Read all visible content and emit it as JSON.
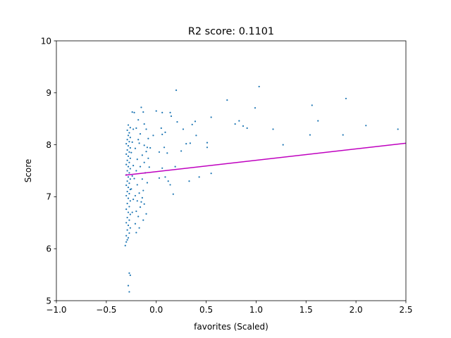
{
  "chart_data": {
    "type": "scatter",
    "title": "R2 score: 0.1101",
    "xlabel": "favorites (Scaled)",
    "ylabel": "Score",
    "xlim": [
      -1.0,
      2.5
    ],
    "ylim": [
      5,
      10
    ],
    "x_ticks": [
      -1.0,
      -0.5,
      0.0,
      0.5,
      1.0,
      1.5,
      2.0,
      2.5
    ],
    "x_tick_labels": [
      "−1.0",
      "−0.5",
      "0.0",
      "0.5",
      "1.0",
      "1.5",
      "2.0",
      "2.5"
    ],
    "y_ticks": [
      5,
      6,
      7,
      8,
      9,
      10
    ],
    "y_tick_labels": [
      "5",
      "6",
      "7",
      "8",
      "9",
      "10"
    ],
    "grid": false,
    "colors": {
      "points": "#1f77b4",
      "fit_line": "#bf00bf"
    },
    "series": [
      {
        "kind": "scatter",
        "points": [
          [
            -0.27,
            5.17
          ],
          [
            -0.28,
            5.29
          ],
          [
            -0.26,
            5.49
          ],
          [
            -0.27,
            5.53
          ],
          [
            -0.31,
            6.06
          ],
          [
            -0.3,
            6.13
          ],
          [
            -0.29,
            6.17
          ],
          [
            -0.28,
            6.21
          ],
          [
            -0.3,
            6.25
          ],
          [
            -0.27,
            6.3
          ],
          [
            -0.29,
            6.36
          ],
          [
            -0.26,
            6.4
          ],
          [
            -0.28,
            6.45
          ],
          [
            -0.3,
            6.5
          ],
          [
            -0.27,
            6.55
          ],
          [
            -0.29,
            6.6
          ],
          [
            -0.26,
            6.66
          ],
          [
            -0.28,
            6.7
          ],
          [
            -0.3,
            6.76
          ],
          [
            -0.27,
            6.81
          ],
          [
            -0.29,
            6.87
          ],
          [
            -0.26,
            6.92
          ],
          [
            -0.28,
            6.97
          ],
          [
            -0.3,
            7.02
          ],
          [
            -0.27,
            7.06
          ],
          [
            -0.29,
            7.1
          ],
          [
            -0.26,
            7.14
          ],
          [
            -0.28,
            7.18
          ],
          [
            -0.3,
            7.22
          ],
          [
            -0.27,
            7.26
          ],
          [
            -0.29,
            7.3
          ],
          [
            -0.26,
            7.34
          ],
          [
            -0.28,
            7.38
          ],
          [
            -0.3,
            7.42
          ],
          [
            -0.27,
            7.46
          ],
          [
            -0.29,
            7.5
          ],
          [
            -0.26,
            7.54
          ],
          [
            -0.28,
            7.58
          ],
          [
            -0.3,
            7.62
          ],
          [
            -0.27,
            7.66
          ],
          [
            -0.29,
            7.7
          ],
          [
            -0.26,
            7.74
          ],
          [
            -0.28,
            7.78
          ],
          [
            -0.3,
            7.82
          ],
          [
            -0.27,
            7.86
          ],
          [
            -0.29,
            7.9
          ],
          [
            -0.26,
            7.94
          ],
          [
            -0.28,
            7.98
          ],
          [
            -0.3,
            8.02
          ],
          [
            -0.27,
            8.06
          ],
          [
            -0.29,
            8.1
          ],
          [
            -0.26,
            8.14
          ],
          [
            -0.28,
            8.18
          ],
          [
            -0.27,
            8.23
          ],
          [
            -0.29,
            8.28
          ],
          [
            -0.26,
            8.33
          ],
          [
            -0.28,
            8.38
          ],
          [
            -0.24,
            6.7
          ],
          [
            -0.23,
            6.95
          ],
          [
            -0.25,
            7.15
          ],
          [
            -0.24,
            7.4
          ],
          [
            -0.23,
            7.6
          ],
          [
            -0.25,
            7.85
          ],
          [
            -0.24,
            8.05
          ],
          [
            -0.23,
            8.3
          ],
          [
            -0.24,
            8.63
          ],
          [
            -0.22,
            8.62
          ],
          [
            -0.15,
            8.72
          ],
          [
            -0.13,
            8.63
          ],
          [
            -0.18,
            8.48
          ],
          [
            -0.12,
            8.4
          ],
          [
            0.0,
            8.65
          ],
          [
            0.06,
            8.62
          ],
          [
            -0.2,
            8.32
          ],
          [
            -0.1,
            8.3
          ],
          [
            -0.16,
            8.21
          ],
          [
            -0.08,
            8.12
          ],
          [
            -0.03,
            8.18
          ],
          [
            -0.17,
            8.03
          ],
          [
            -0.12,
            7.99
          ],
          [
            -0.06,
            7.94
          ],
          [
            -0.1,
            7.87
          ],
          [
            -0.21,
            7.93
          ],
          [
            -0.14,
            7.8
          ],
          [
            -0.19,
            7.72
          ],
          [
            -0.08,
            7.74
          ],
          [
            -0.12,
            7.66
          ],
          [
            -0.16,
            7.58
          ],
          [
            -0.07,
            7.57
          ],
          [
            -0.2,
            7.5
          ],
          [
            -0.11,
            7.46
          ],
          [
            -0.14,
            7.34
          ],
          [
            -0.09,
            7.27
          ],
          [
            -0.19,
            7.23
          ],
          [
            -0.13,
            7.12
          ],
          [
            -0.17,
            7.07
          ],
          [
            -0.21,
            7.02
          ],
          [
            -0.14,
            6.98
          ],
          [
            -0.19,
            6.92
          ],
          [
            -0.12,
            6.86
          ],
          [
            -0.16,
            6.8
          ],
          [
            -0.2,
            6.72
          ],
          [
            -0.1,
            6.67
          ],
          [
            -0.18,
            6.62
          ],
          [
            -0.13,
            6.55
          ],
          [
            -0.21,
            6.48
          ],
          [
            -0.17,
            6.4
          ],
          [
            -0.2,
            6.31
          ],
          [
            -0.15,
            6.9
          ],
          [
            -0.22,
            7.35
          ],
          [
            -0.09,
            7.95
          ],
          [
            -0.18,
            8.1
          ],
          [
            0.03,
            7.86
          ],
          [
            0.06,
            8.2
          ],
          [
            0.09,
            8.24
          ],
          [
            0.05,
            8.32
          ],
          [
            0.08,
            7.95
          ],
          [
            0.11,
            7.84
          ],
          [
            0.06,
            7.55
          ],
          [
            0.09,
            7.38
          ],
          [
            0.12,
            7.3
          ],
          [
            0.14,
            7.23
          ],
          [
            0.17,
            7.05
          ],
          [
            0.03,
            7.36
          ],
          [
            0.14,
            8.62
          ],
          [
            0.15,
            8.55
          ],
          [
            0.21,
            8.44
          ],
          [
            0.27,
            8.3
          ],
          [
            0.3,
            8.02
          ],
          [
            0.25,
            7.88
          ],
          [
            0.19,
            7.58
          ],
          [
            0.33,
            7.3
          ],
          [
            0.2,
            9.05
          ],
          [
            0.36,
            8.39
          ],
          [
            0.39,
            8.45
          ],
          [
            0.4,
            8.18
          ],
          [
            0.34,
            8.03
          ],
          [
            0.43,
            7.38
          ],
          [
            0.51,
            8.04
          ],
          [
            0.51,
            7.95
          ],
          [
            0.55,
            8.53
          ],
          [
            0.55,
            7.45
          ],
          [
            0.71,
            8.86
          ],
          [
            0.79,
            8.4
          ],
          [
            0.83,
            8.46
          ],
          [
            0.87,
            8.36
          ],
          [
            0.91,
            8.32
          ],
          [
            0.99,
            8.71
          ],
          [
            1.03,
            9.12
          ],
          [
            1.17,
            8.3
          ],
          [
            1.27,
            8.0
          ],
          [
            1.54,
            8.19
          ],
          [
            1.56,
            8.76
          ],
          [
            1.62,
            8.46
          ],
          [
            1.87,
            8.19
          ],
          [
            1.9,
            8.89
          ],
          [
            2.1,
            8.37
          ],
          [
            2.42,
            8.3
          ]
        ]
      },
      {
        "kind": "line",
        "points": [
          [
            -0.31,
            7.415
          ],
          [
            2.5,
            8.03
          ]
        ]
      }
    ]
  }
}
